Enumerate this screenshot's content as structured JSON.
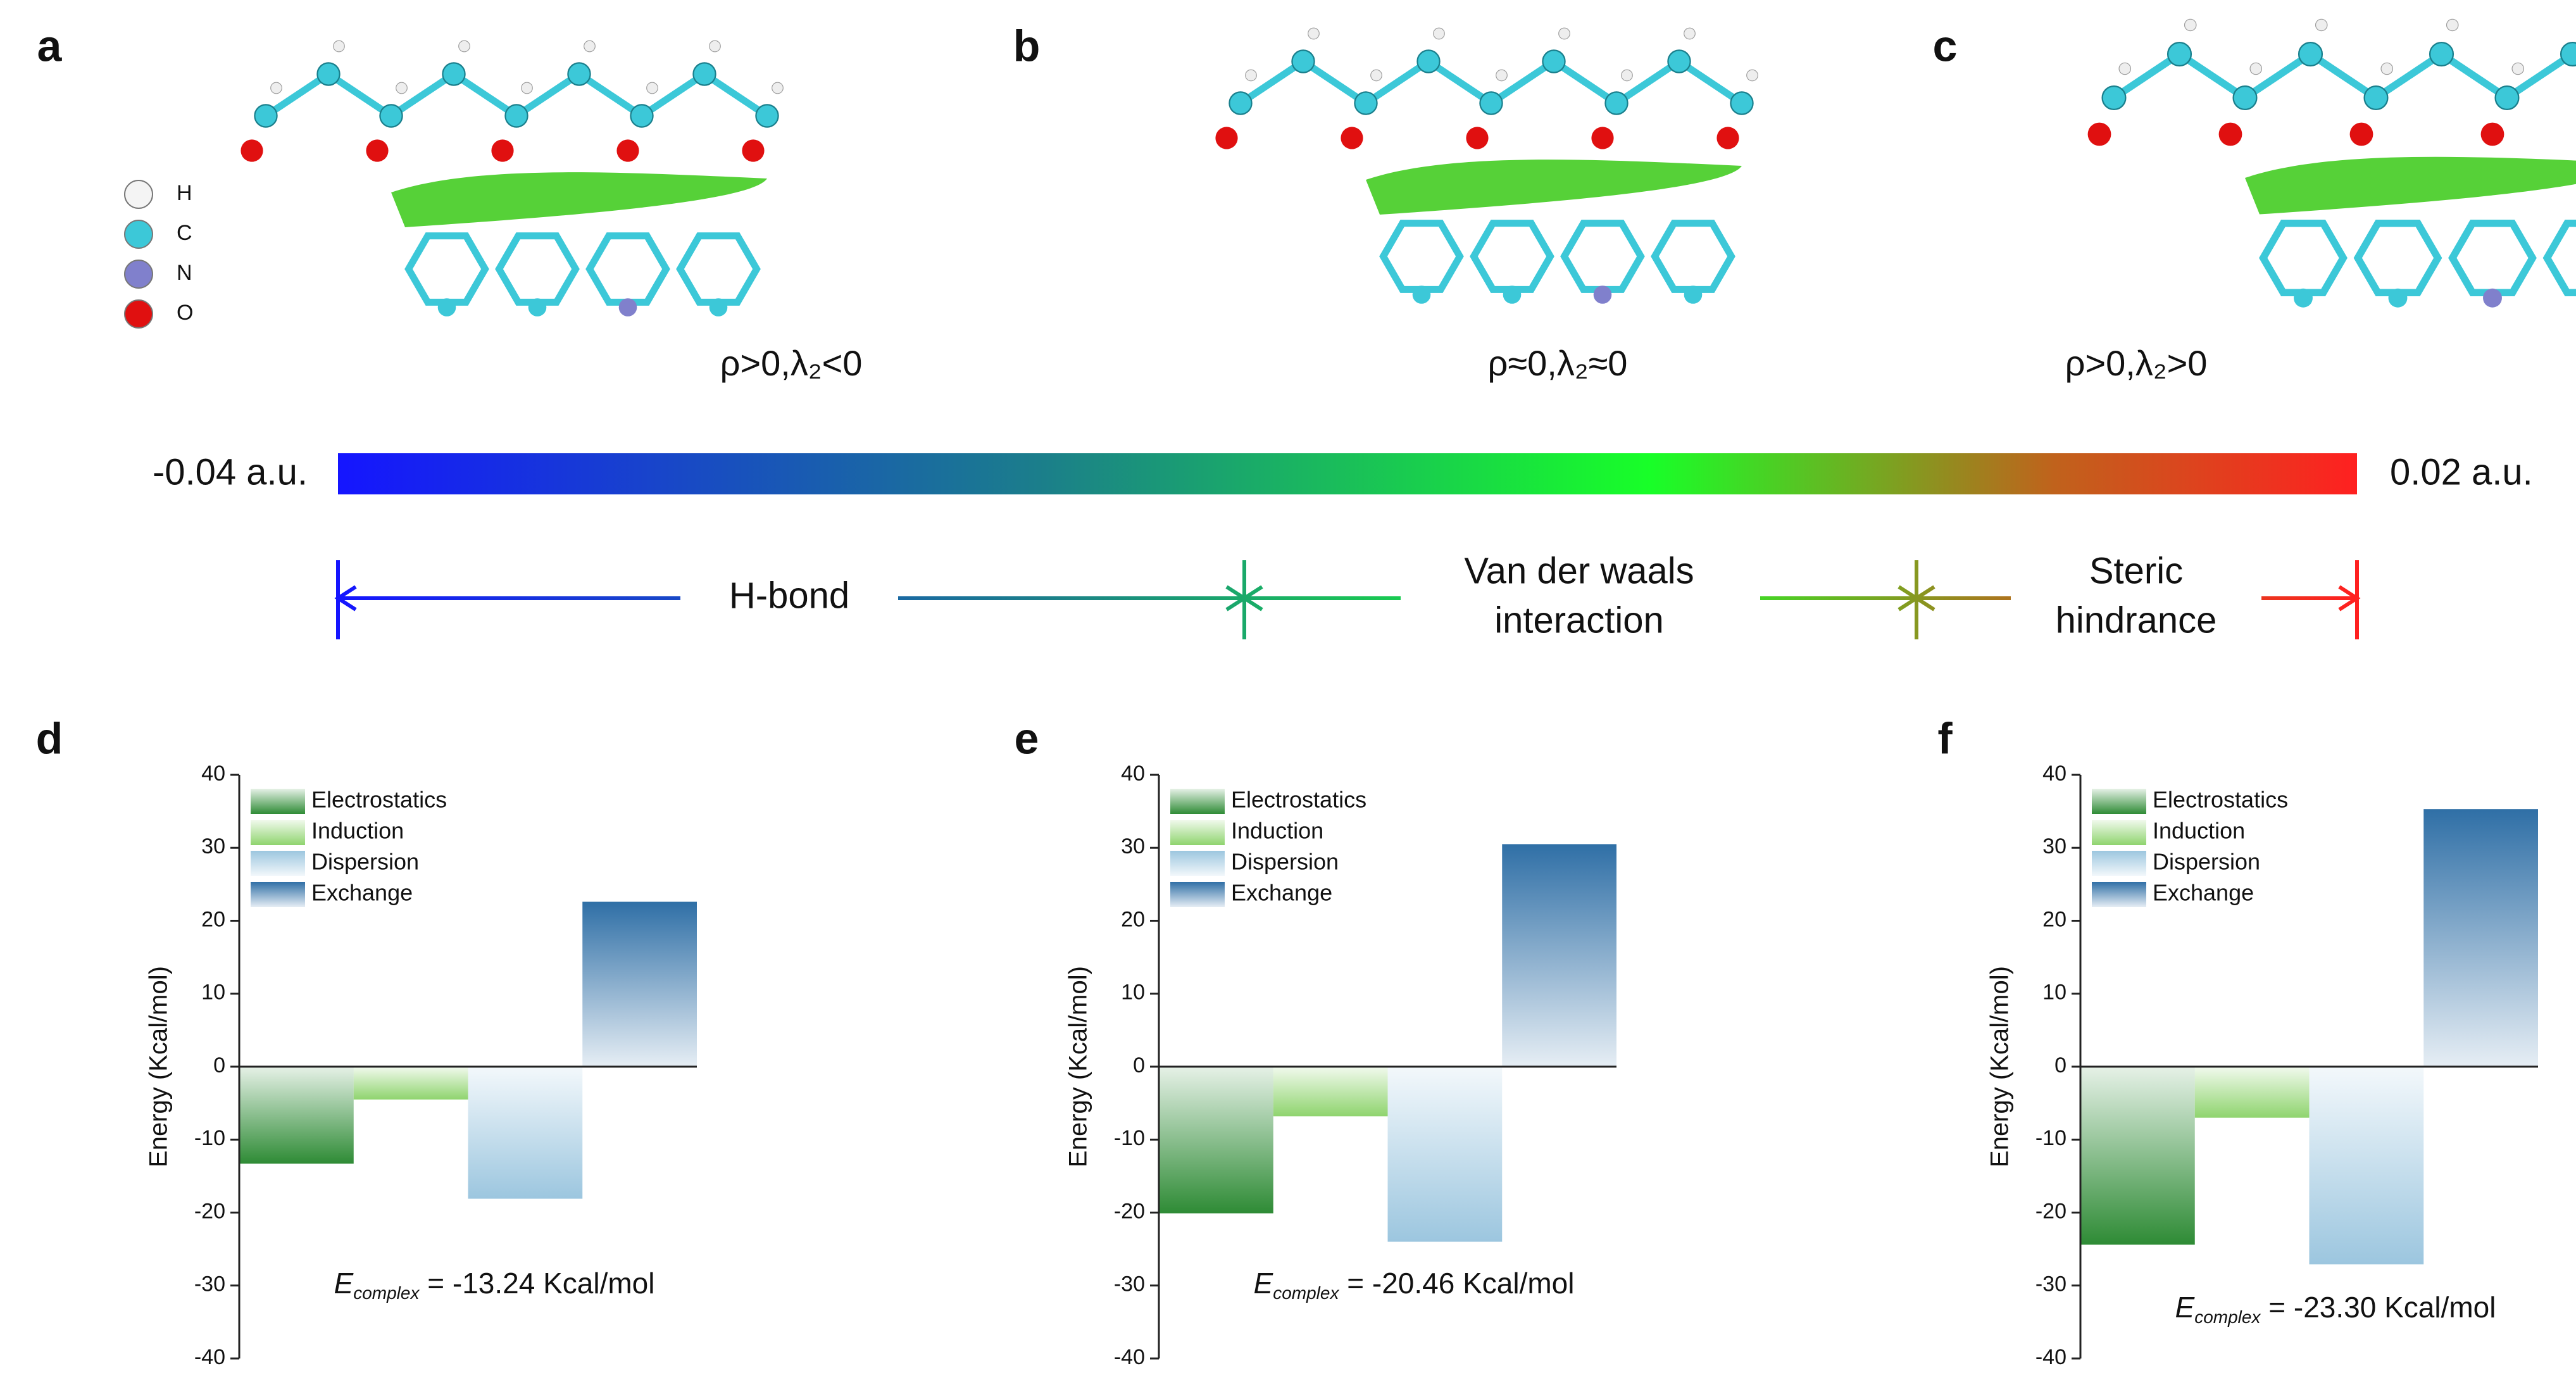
{
  "panel_labels": [
    "a",
    "b",
    "c",
    "d",
    "e",
    "f"
  ],
  "atom_legend": [
    "H",
    "C",
    "N",
    "O"
  ],
  "rdg_labels": [
    "ρ>0,λ₂<0",
    "ρ≈0,λ₂≈0",
    "ρ>0,λ₂>0"
  ],
  "colorbar": {
    "lim": [
      -0.04,
      0.02
    ],
    "ticks": [
      {
        "value": -0.04,
        "label": "-0.04 a.u."
      },
      {
        "value": 0.02,
        "label": "0.02 a.u."
      }
    ]
  },
  "regions": [
    {
      "lines": [
        "H-bond"
      ]
    },
    {
      "lines": [
        "Van der waals",
        "interaction"
      ]
    },
    {
      "lines": [
        "Steric",
        "hindrance"
      ]
    }
  ],
  "chart_data": [
    {
      "type": "bar",
      "ylabel": "Energy (Kcal/mol)",
      "categories": [
        null
      ],
      "series": [
        {
          "name": "Electrostatics",
          "color": "#2e8b35",
          "values": [
            -13.3
          ]
        },
        {
          "name": "Induction",
          "color": "#8fd46e",
          "values": [
            -4.5
          ]
        },
        {
          "name": "Dispersion",
          "color": "#9cc6df",
          "values": [
            -18.1
          ]
        },
        {
          "name": "Exchange",
          "color": "#2f6fa6",
          "values": [
            22.6
          ]
        }
      ],
      "ylim": [
        -40,
        40
      ],
      "yticks": [
        -40,
        -30,
        -20,
        -10,
        0,
        10,
        20,
        30,
        40
      ],
      "annotation": {
        "symbol": "E",
        "subscript": "complex",
        "text": " = -13.24 Kcal/mol"
      }
    },
    {
      "type": "bar",
      "ylabel": "Energy (Kcal/mol)",
      "categories": [
        null
      ],
      "series": [
        {
          "name": "Electrostatics",
          "color": "#2e8b35",
          "values": [
            -20.1
          ]
        },
        {
          "name": "Induction",
          "color": "#8fd46e",
          "values": [
            -6.8
          ]
        },
        {
          "name": "Dispersion",
          "color": "#9cc6df",
          "values": [
            -24
          ]
        },
        {
          "name": "Exchange",
          "color": "#2f6fa6",
          "values": [
            30.5
          ]
        }
      ],
      "ylim": [
        -40,
        40
      ],
      "yticks": [
        -40,
        -30,
        -20,
        -10,
        0,
        10,
        20,
        30,
        40
      ],
      "annotation": {
        "symbol": "E",
        "subscript": "complex",
        "text": " = -20.46 Kcal/mol"
      }
    },
    {
      "type": "bar",
      "ylabel": "Energy (Kcal/mol)",
      "categories": [
        null
      ],
      "series": [
        {
          "name": "Electrostatics",
          "color": "#2e8b35",
          "values": [
            -24.4
          ]
        },
        {
          "name": "Induction",
          "color": "#8fd46e",
          "values": [
            -7
          ]
        },
        {
          "name": "Dispersion",
          "color": "#9cc6df",
          "values": [
            -27.1
          ]
        },
        {
          "name": "Exchange",
          "color": "#2f6fa6",
          "values": [
            35.3
          ]
        }
      ],
      "ylim": [
        -40,
        40
      ],
      "yticks": [
        -40,
        -30,
        -20,
        -10,
        0,
        10,
        20,
        30,
        40
      ],
      "annotation": {
        "symbol": "E",
        "subscript": "complex",
        "text": " = -23.30 Kcal/mol"
      }
    }
  ]
}
